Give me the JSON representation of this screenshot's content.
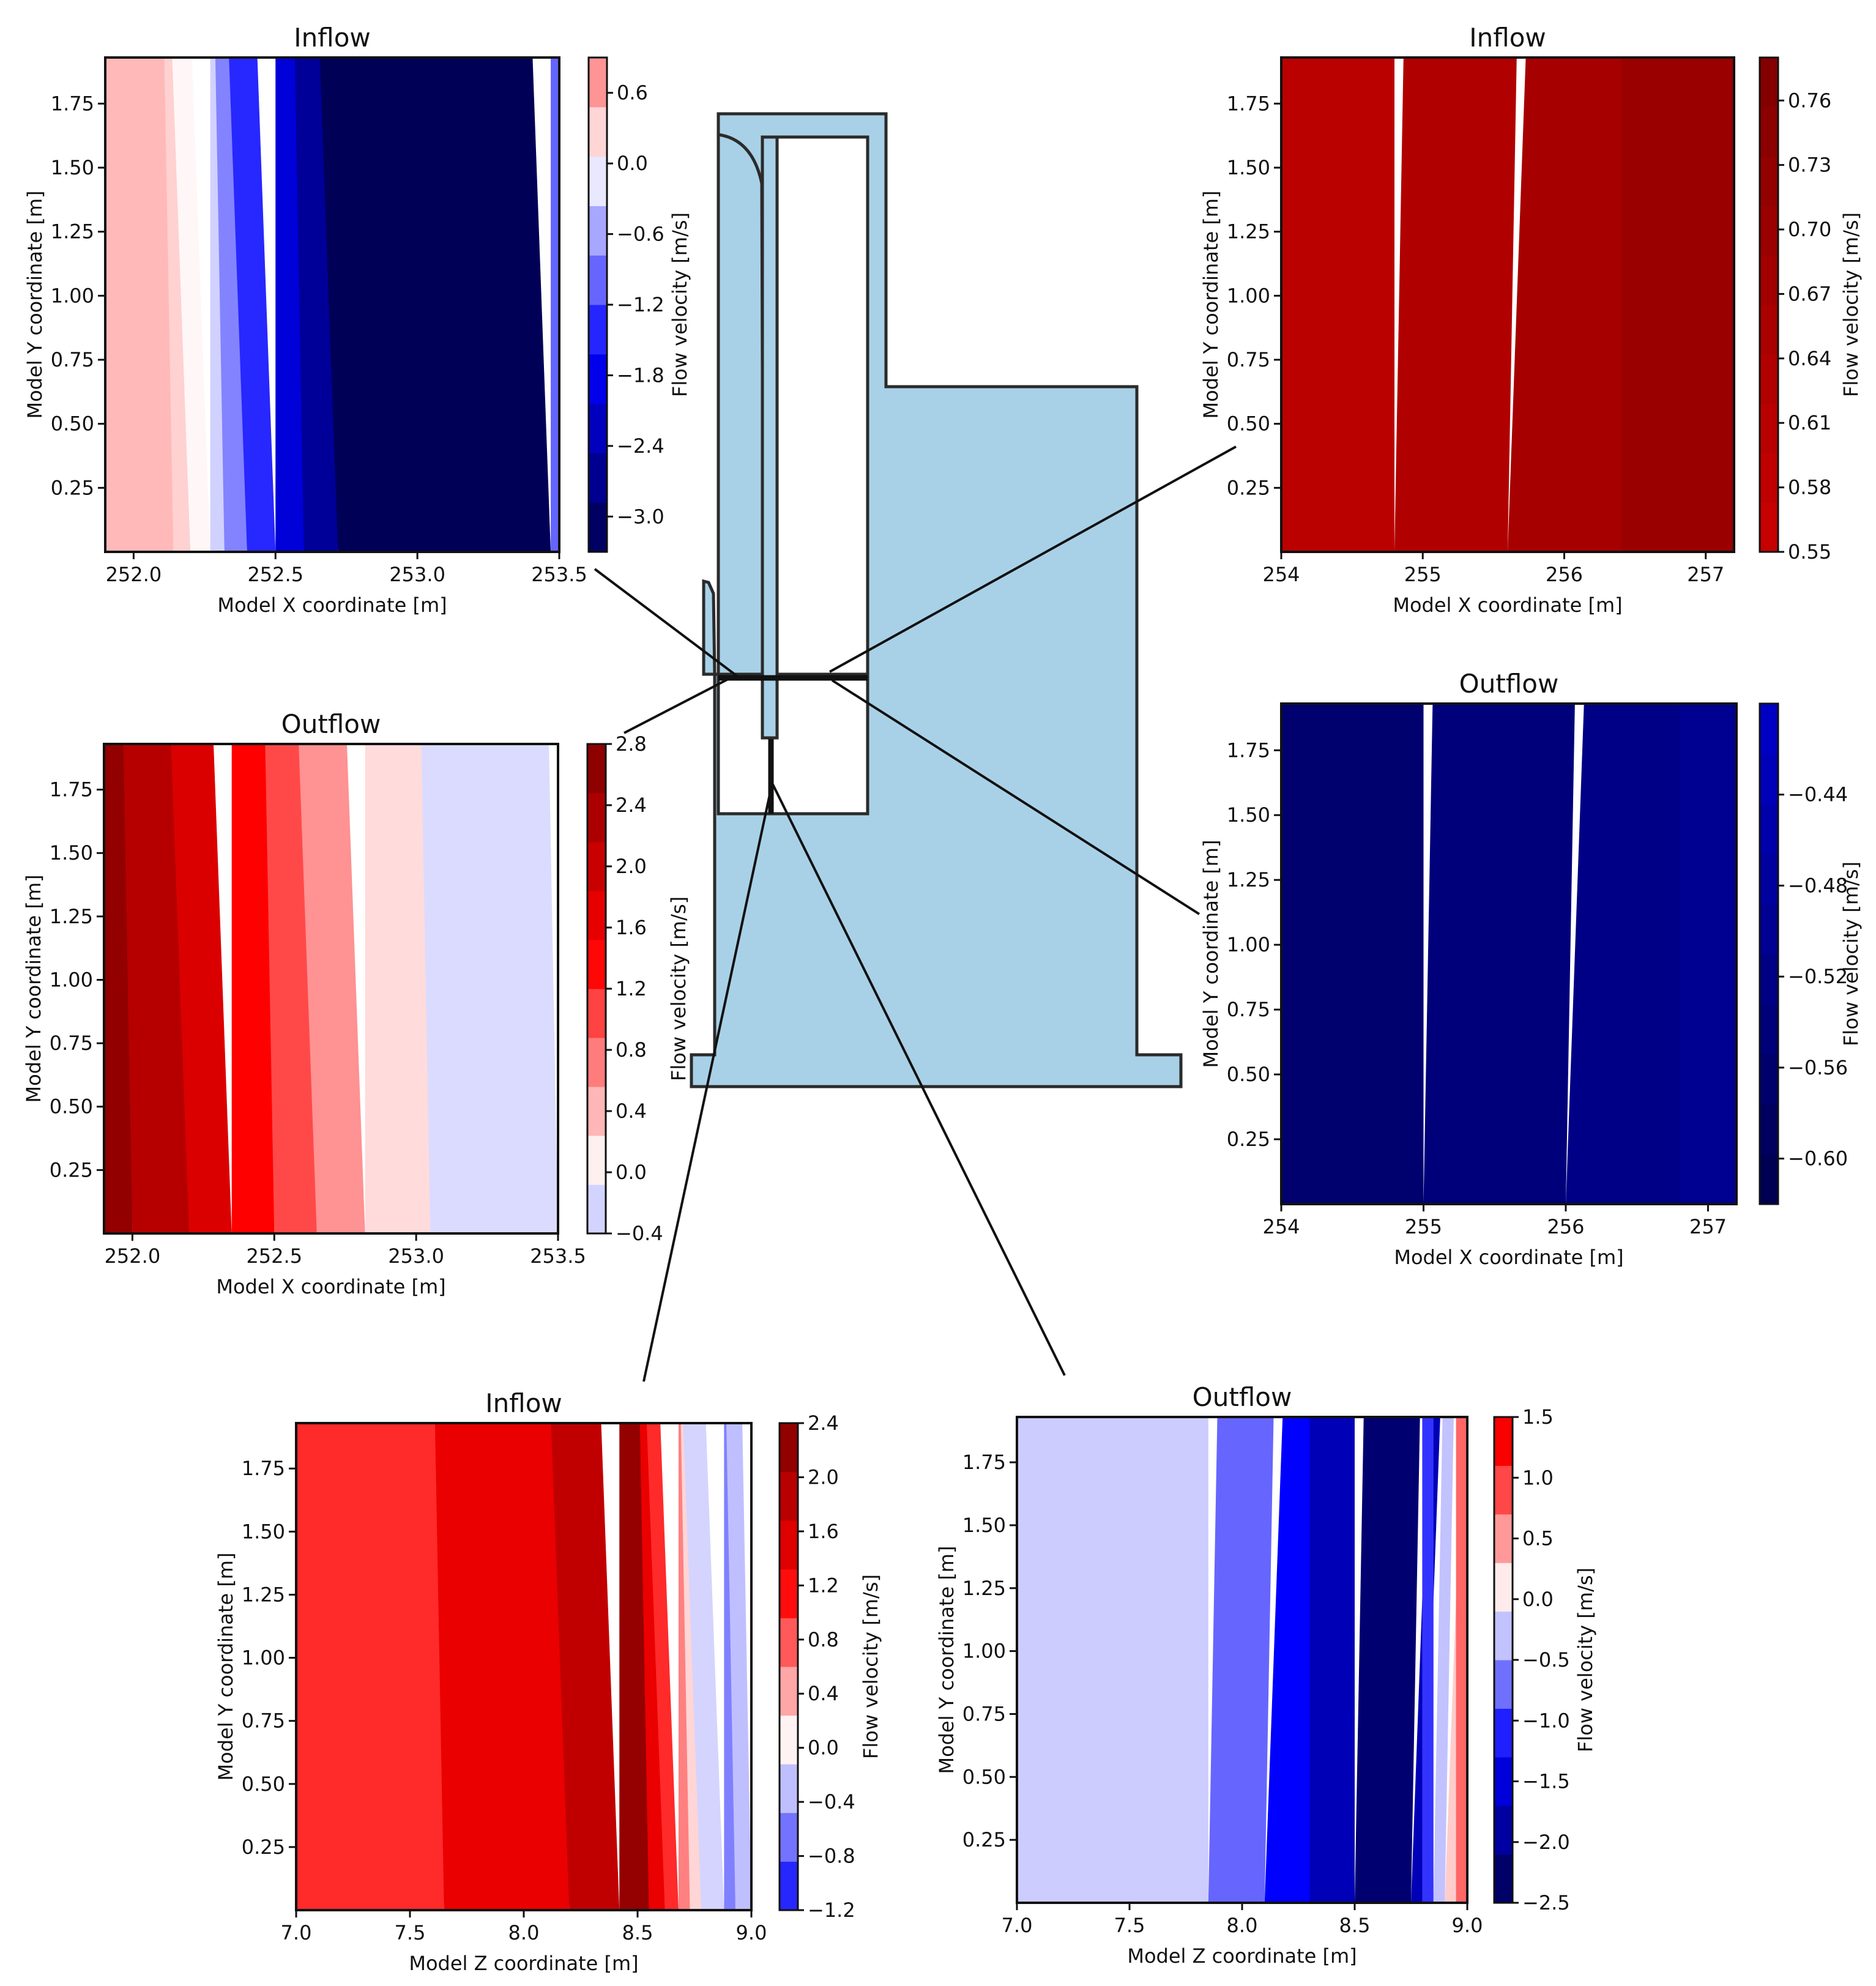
{
  "figure": {
    "description_tag": "Flow velocity contour maps around a structure cross-section"
  },
  "chart_data": [
    {
      "id": "p1",
      "type": "heatmap",
      "title": "Inflow",
      "xlabel": "Model X coordinate [m]",
      "ylabel": "Model Y coordinate [m]",
      "colorbar_label": "Flow velocity [m/s]",
      "xlim": [
        251.9,
        253.5
      ],
      "ylim": [
        0.0,
        1.93
      ],
      "xticks": [
        "252.0",
        "252.5",
        "253.0",
        "253.5"
      ],
      "xtick_values": [
        252.0,
        252.5,
        253.0,
        253.5
      ],
      "yticks": [
        "0.25",
        "0.50",
        "0.75",
        "1.00",
        "1.25",
        "1.50",
        "1.75"
      ],
      "ytick_values": [
        0.25,
        0.5,
        0.75,
        1.0,
        1.25,
        1.5,
        1.75
      ],
      "color_range": [
        -3.3,
        0.9
      ],
      "colorbar_ticks": [
        "0.6",
        "0.0",
        "−0.6",
        "−1.2",
        "−1.8",
        "−2.4",
        "−3.0"
      ],
      "colorbar_tick_values": [
        0.6,
        0.0,
        -0.6,
        -1.2,
        -1.8,
        -2.4,
        -3.0
      ],
      "bands": [
        {
          "x": 251.9,
          "v": 0.45
        },
        {
          "x": 252.14,
          "v": 0.3
        },
        {
          "x": 252.2,
          "v": 0.05
        },
        {
          "x": 252.27,
          "v": -0.3
        },
        {
          "x": 252.32,
          "v": -0.8
        },
        {
          "x": 252.4,
          "v": -1.4
        },
        {
          "x": 252.5,
          "v": -2.0
        },
        {
          "x": 252.6,
          "v": -2.6
        },
        {
          "x": 252.72,
          "v": -3.2
        },
        {
          "x": 253.47,
          "v": -1.0
        }
      ]
    },
    {
      "id": "p2",
      "type": "heatmap",
      "title": "Inflow",
      "xlabel": "Model X coordinate [m]",
      "ylabel": "Model Y coordinate [m]",
      "colorbar_label": "Flow velocity [m/s]",
      "xlim": [
        254.0,
        257.2
      ],
      "ylim": [
        0.0,
        1.93
      ],
      "xticks": [
        "254",
        "255",
        "256",
        "257"
      ],
      "xtick_values": [
        254,
        255,
        256,
        257
      ],
      "yticks": [
        "0.25",
        "0.50",
        "0.75",
        "1.00",
        "1.25",
        "1.50",
        "1.75"
      ],
      "ytick_values": [
        0.25,
        0.5,
        0.75,
        1.0,
        1.25,
        1.5,
        1.75
      ],
      "color_range": [
        0.55,
        0.78
      ],
      "colorbar_ticks": [
        "0.76",
        "0.73",
        "0.70",
        "0.67",
        "0.64",
        "0.61",
        "0.58",
        "0.55"
      ],
      "colorbar_tick_values": [
        0.76,
        0.73,
        0.7,
        0.67,
        0.64,
        0.61,
        0.58,
        0.55
      ],
      "bands": [
        {
          "x": 254.0,
          "v": 0.6
        },
        {
          "x": 254.8,
          "v": 0.63
        },
        {
          "x": 255.6,
          "v": 0.66
        },
        {
          "x": 256.4,
          "v": 0.7
        }
      ]
    },
    {
      "id": "p3",
      "type": "heatmap",
      "title": "Outflow",
      "xlabel": "Model X coordinate [m]",
      "ylabel": "Model Y coordinate [m]",
      "colorbar_label": "Flow velocity [m/s]",
      "xlim": [
        251.9,
        253.5
      ],
      "ylim": [
        0.0,
        1.93
      ],
      "xticks": [
        "252.0",
        "252.5",
        "253.0",
        "253.5"
      ],
      "xtick_values": [
        252.0,
        252.5,
        253.0,
        253.5
      ],
      "yticks": [
        "0.25",
        "0.50",
        "0.75",
        "1.00",
        "1.25",
        "1.50",
        "1.75"
      ],
      "ytick_values": [
        0.25,
        0.5,
        0.75,
        1.0,
        1.25,
        1.5,
        1.75
      ],
      "color_range": [
        -0.4,
        2.8
      ],
      "colorbar_ticks": [
        "2.8",
        "2.4",
        "2.0",
        "1.6",
        "1.2",
        "0.8",
        "0.4",
        "0.0",
        "−0.4"
      ],
      "colorbar_tick_values": [
        2.8,
        2.4,
        2.0,
        1.6,
        1.2,
        0.8,
        0.4,
        0.0,
        -0.4
      ],
      "bands": [
        {
          "x": 251.9,
          "v": 2.6
        },
        {
          "x": 252.0,
          "v": 2.2
        },
        {
          "x": 252.2,
          "v": 1.8
        },
        {
          "x": 252.35,
          "v": 1.4
        },
        {
          "x": 252.5,
          "v": 1.0
        },
        {
          "x": 252.65,
          "v": 0.6
        },
        {
          "x": 252.82,
          "v": 0.2
        },
        {
          "x": 253.05,
          "v": -0.2
        }
      ]
    },
    {
      "id": "p4",
      "type": "heatmap",
      "title": "Outflow",
      "xlabel": "Model X coordinate [m]",
      "ylabel": "Model Y coordinate [m]",
      "colorbar_label": "Flow velocity [m/s]",
      "xlim": [
        254.0,
        257.2
      ],
      "ylim": [
        0.0,
        1.93
      ],
      "xticks": [
        "254",
        "255",
        "256",
        "257"
      ],
      "xtick_values": [
        254,
        255,
        256,
        257
      ],
      "yticks": [
        "0.25",
        "0.50",
        "0.75",
        "1.00",
        "1.25",
        "1.50",
        "1.75"
      ],
      "ytick_values": [
        0.25,
        0.5,
        0.75,
        1.0,
        1.25,
        1.5,
        1.75
      ],
      "color_range": [
        -0.62,
        -0.4
      ],
      "colorbar_ticks": [
        "−0.44",
        "−0.48",
        "−0.52",
        "−0.56",
        "−0.60"
      ],
      "colorbar_tick_values": [
        -0.44,
        -0.48,
        -0.52,
        -0.56,
        -0.6
      ],
      "bands": [
        {
          "x": 254.0,
          "v": -0.56
        },
        {
          "x": 255.0,
          "v": -0.54
        },
        {
          "x": 256.0,
          "v": -0.52
        },
        {
          "x": 256.8,
          "v": -0.5
        }
      ]
    },
    {
      "id": "p5",
      "type": "heatmap",
      "title": "Inflow",
      "xlabel": "Model Z coordinate [m]",
      "ylabel": "Model Y coordinate [m]",
      "colorbar_label": "Flow velocity [m/s]",
      "xlim": [
        7.0,
        9.0
      ],
      "ylim": [
        0.0,
        1.93
      ],
      "xticks": [
        "7.0",
        "7.5",
        "8.0",
        "8.5",
        "9.0"
      ],
      "xtick_values": [
        7.0,
        7.5,
        8.0,
        8.5,
        9.0
      ],
      "yticks": [
        "0.25",
        "0.50",
        "0.75",
        "1.00",
        "1.25",
        "1.50",
        "1.75"
      ],
      "ytick_values": [
        0.25,
        0.5,
        0.75,
        1.0,
        1.25,
        1.5,
        1.75
      ],
      "color_range": [
        -1.2,
        2.4
      ],
      "colorbar_ticks": [
        "2.4",
        "2.0",
        "1.6",
        "1.2",
        "0.8",
        "0.4",
        "0.0",
        "−0.4",
        "−0.8",
        "−1.2"
      ],
      "colorbar_tick_values": [
        2.4,
        2.0,
        1.6,
        1.2,
        0.8,
        0.4,
        0.0,
        -0.4,
        -0.8,
        -1.2
      ],
      "bands": [
        {
          "x": 7.0,
          "v": 1.0
        },
        {
          "x": 7.65,
          "v": 1.4
        },
        {
          "x": 8.2,
          "v": 1.8
        },
        {
          "x": 8.42,
          "v": 2.2
        },
        {
          "x": 8.55,
          "v": 1.4
        },
        {
          "x": 8.62,
          "v": 1.0
        },
        {
          "x": 8.68,
          "v": 0.6
        },
        {
          "x": 8.73,
          "v": 0.2
        },
        {
          "x": 8.78,
          "v": -0.2
        },
        {
          "x": 8.88,
          "v": -0.6
        },
        {
          "x": 8.93,
          "v": -0.3
        }
      ]
    },
    {
      "id": "p6",
      "type": "heatmap",
      "title": "Outflow",
      "xlabel": "Model Z coordinate [m]",
      "ylabel": "Model Y coordinate [m]",
      "colorbar_label": "Flow velocity [m/s]",
      "xlim": [
        7.0,
        9.0
      ],
      "ylim": [
        0.0,
        1.93
      ],
      "xticks": [
        "7.0",
        "7.5",
        "8.0",
        "8.5",
        "9.0"
      ],
      "xtick_values": [
        7.0,
        7.5,
        8.0,
        8.5,
        9.0
      ],
      "yticks": [
        "0.25",
        "0.50",
        "0.75",
        "1.00",
        "1.25",
        "1.50",
        "1.75"
      ],
      "ytick_values": [
        0.25,
        0.5,
        0.75,
        1.0,
        1.25,
        1.5,
        1.75
      ],
      "color_range": [
        -2.5,
        1.5
      ],
      "colorbar_ticks": [
        "1.5",
        "1.0",
        "0.5",
        "0.0",
        "−0.5",
        "−1.0",
        "−1.5",
        "−2.0",
        "−2.5"
      ],
      "colorbar_tick_values": [
        1.5,
        1.0,
        0.5,
        0.0,
        -0.5,
        -1.0,
        -1.5,
        -2.0,
        -2.5
      ],
      "bands": [
        {
          "x": 7.0,
          "v": -0.25
        },
        {
          "x": 7.85,
          "v": -0.75
        },
        {
          "x": 8.1,
          "v": -1.25
        },
        {
          "x": 8.3,
          "v": -1.75
        },
        {
          "x": 8.5,
          "v": -2.25
        },
        {
          "x": 8.75,
          "v": -1.75
        },
        {
          "x": 8.8,
          "v": -1.0
        },
        {
          "x": 8.85,
          "v": -0.3
        },
        {
          "x": 8.9,
          "v": 0.25
        },
        {
          "x": 8.95,
          "v": 0.75
        }
      ]
    }
  ]
}
